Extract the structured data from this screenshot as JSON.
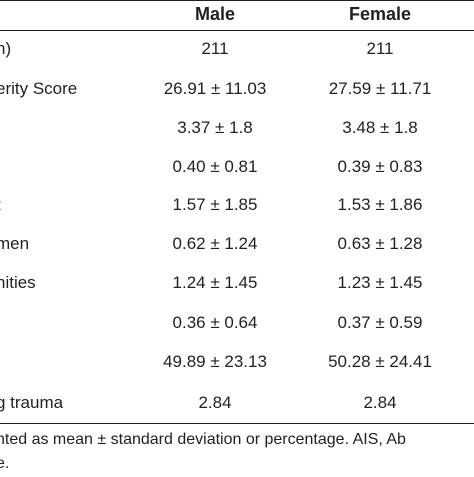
{
  "table": {
    "headers": {
      "label": "",
      "male": "Male",
      "female": "Female"
    },
    "rows": [
      {
        "label": "n)",
        "male": "211",
        "female": "211"
      },
      {
        "label": "erity Score",
        "male": "26.91 ± 11.03",
        "female": "27.59 ± 11.71"
      },
      {
        "label": "",
        "male": "3.37 ± 1.8",
        "female": "3.48 ± 1.8"
      },
      {
        "label": "",
        "male": "0.40 ± 0.81",
        "female": "0.39 ± 0.83"
      },
      {
        "label": "t",
        "male": "1.57 ± 1.85",
        "female": "1.53 ± 1.86"
      },
      {
        "label": "men",
        "male": "0.62 ± 1.24",
        "female": "0.63 ± 1.28"
      },
      {
        "label": "nities",
        "male": "1.24 ± 1.45",
        "female": "1.23 ± 1.45"
      },
      {
        "label": "",
        "male": "0.36 ± 0.64",
        "female": "0.37 ± 0.59"
      },
      {
        "label": "",
        "male": "49.89 ± 23.13",
        "female": "50.28 ± 24.41"
      },
      {
        "label": "g trauma",
        "male": "2.84",
        "female": "2.84"
      }
    ],
    "footnote": [
      "nted as mean ± standard deviation or percentage. AIS, Ab",
      "e."
    ]
  }
}
